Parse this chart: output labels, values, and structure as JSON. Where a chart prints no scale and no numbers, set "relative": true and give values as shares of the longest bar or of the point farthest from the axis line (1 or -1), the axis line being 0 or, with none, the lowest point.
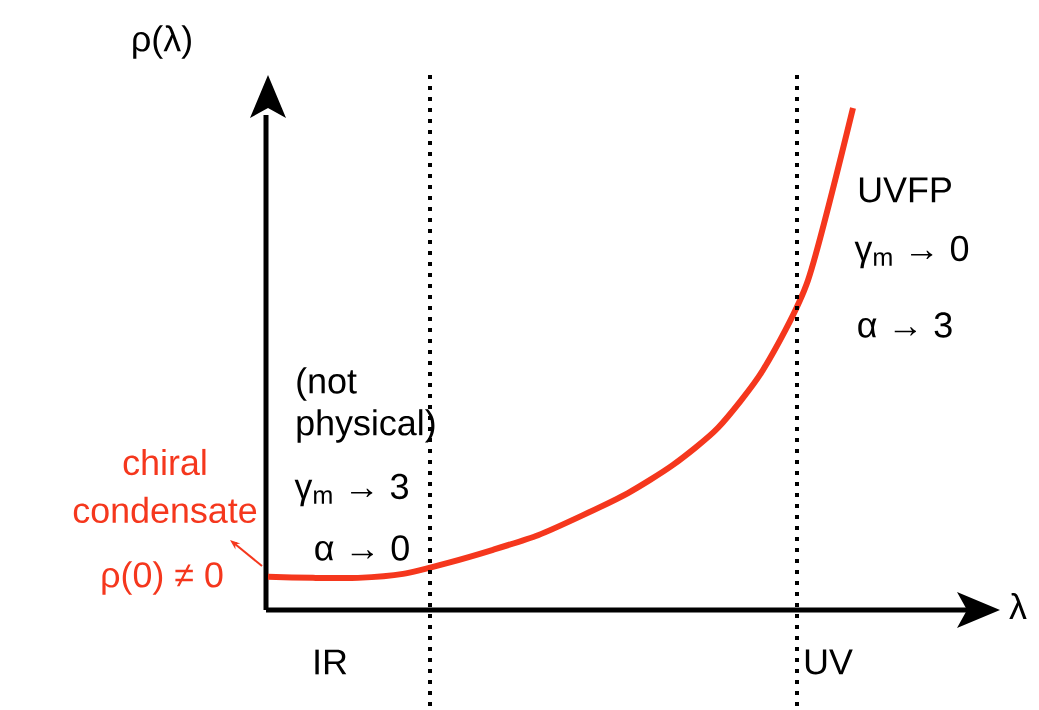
{
  "chart_data": {
    "type": "line",
    "relative": true,
    "xlabel": "λ",
    "ylabel": "ρ(λ)",
    "categories": [
      null,
      null,
      null,
      null,
      null,
      null,
      null,
      null,
      null,
      null,
      null,
      null,
      null,
      null
    ],
    "series": [
      {
        "color": "#f5371d",
        "values": [
          0.066,
          0.064,
          0.064,
          0.072,
          0.094,
          0.12,
          0.149,
          0.189,
          0.233,
          0.289,
          0.363,
          0.478,
          0.657,
          1
        ]
      }
    ],
    "annotations": [
      "UVFP",
      "γ$_{m}$ → 0",
      "α → 3",
      "(not physical)",
      "γ$_{m}$ → 3",
      "α → 0",
      "chiral condensate",
      "ρ(0) ≠ 0",
      "IR",
      "UV"
    ]
  }
}
